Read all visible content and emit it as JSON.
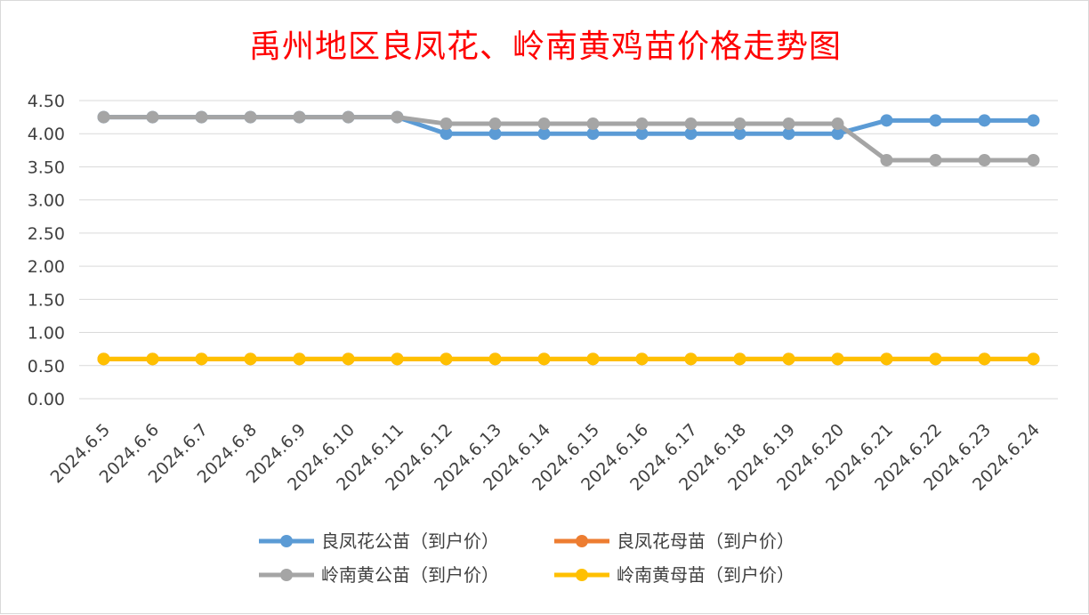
{
  "chart_data": {
    "type": "line",
    "title": "禹州地区良凤花、岭南黄鸡苗价格走势图",
    "xlabel": "",
    "ylabel": "",
    "ylim": [
      0,
      4.5
    ],
    "y_ticks": [
      "0.00",
      "0.50",
      "1.00",
      "1.50",
      "2.00",
      "2.50",
      "3.00",
      "3.50",
      "4.00",
      "4.50"
    ],
    "grid": true,
    "legend_position": "bottom",
    "categories": [
      "2024.6.5",
      "2024.6.6",
      "2024.6.7",
      "2024.6.8",
      "2024.6.9",
      "2024.6.10",
      "2024.6.11",
      "2024.6.12",
      "2024.6.13",
      "2024.6.14",
      "2024.6.15",
      "2024.6.16",
      "2024.6.17",
      "2024.6.18",
      "2024.6.19",
      "2024.6.20",
      "2024.6.21",
      "2024.6.22",
      "2024.6.23",
      "2024.6.24"
    ],
    "series": [
      {
        "name": "良凤花公苗（到户价）",
        "color": "#5b9bd5",
        "values": [
          4.25,
          4.25,
          4.25,
          4.25,
          4.25,
          4.25,
          4.25,
          4.0,
          4.0,
          4.0,
          4.0,
          4.0,
          4.0,
          4.0,
          4.0,
          4.0,
          4.2,
          4.2,
          4.2,
          4.2
        ]
      },
      {
        "name": "良凤花母苗（到户价）",
        "color": "#ed7d31",
        "values": [
          0.6,
          0.6,
          0.6,
          0.6,
          0.6,
          0.6,
          0.6,
          0.6,
          0.6,
          0.6,
          0.6,
          0.6,
          0.6,
          0.6,
          0.6,
          0.6,
          0.6,
          0.6,
          0.6,
          0.6
        ]
      },
      {
        "name": "岭南黄公苗（到户价）",
        "color": "#a5a5a5",
        "values": [
          4.25,
          4.25,
          4.25,
          4.25,
          4.25,
          4.25,
          4.25,
          4.15,
          4.15,
          4.15,
          4.15,
          4.15,
          4.15,
          4.15,
          4.15,
          4.15,
          3.6,
          3.6,
          3.6,
          3.6
        ]
      },
      {
        "name": "岭南黄母苗（到户价）",
        "color": "#ffc000",
        "values": [
          0.6,
          0.6,
          0.6,
          0.6,
          0.6,
          0.6,
          0.6,
          0.6,
          0.6,
          0.6,
          0.6,
          0.6,
          0.6,
          0.6,
          0.6,
          0.6,
          0.6,
          0.6,
          0.6,
          0.6
        ]
      }
    ]
  }
}
